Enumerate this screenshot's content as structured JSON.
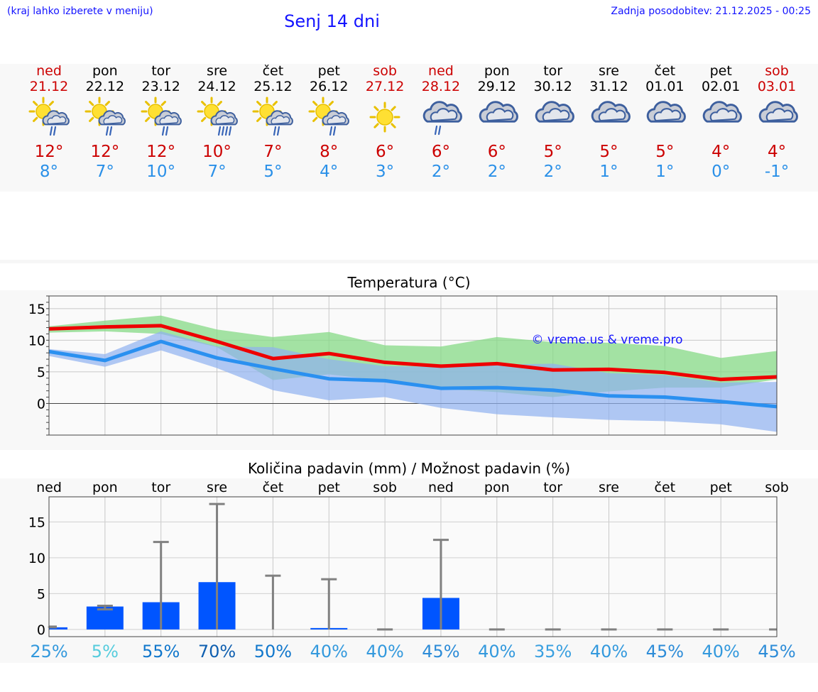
{
  "header": {
    "hint": "(kraj lahko izberete v meniju)",
    "title": "Senj 14 dni",
    "updated": "Zadnja posodobitev: 21.12.2025 - 00:25"
  },
  "days": [
    {
      "name": "ned",
      "date": "21.12",
      "weekend": true,
      "icon": "sun-cloud-rain-icon",
      "tmax": "12°",
      "tmin": "8°"
    },
    {
      "name": "pon",
      "date": "22.12",
      "weekend": false,
      "icon": "sun-cloud-rain-icon",
      "tmax": "12°",
      "tmin": "7°"
    },
    {
      "name": "tor",
      "date": "23.12",
      "weekend": false,
      "icon": "sun-cloud-rain-icon",
      "tmax": "12°",
      "tmin": "10°"
    },
    {
      "name": "sre",
      "date": "24.12",
      "weekend": false,
      "icon": "sun-cloud-heavy-rain-icon",
      "tmax": "10°",
      "tmin": "7°"
    },
    {
      "name": "čet",
      "date": "25.12",
      "weekend": false,
      "icon": "sun-cloud-rain-icon",
      "tmax": "7°",
      "tmin": "5°"
    },
    {
      "name": "pet",
      "date": "26.12",
      "weekend": false,
      "icon": "sun-cloud-rain-icon",
      "tmax": "8°",
      "tmin": "4°"
    },
    {
      "name": "sob",
      "date": "27.12",
      "weekend": true,
      "icon": "sun-icon",
      "tmax": "6°",
      "tmin": "3°"
    },
    {
      "name": "ned",
      "date": "28.12",
      "weekend": true,
      "icon": "cloud-rain-icon",
      "tmax": "6°",
      "tmin": "2°"
    },
    {
      "name": "pon",
      "date": "29.12",
      "weekend": false,
      "icon": "cloud-icon",
      "tmax": "6°",
      "tmin": "2°"
    },
    {
      "name": "tor",
      "date": "30.12",
      "weekend": false,
      "icon": "cloud-icon",
      "tmax": "5°",
      "tmin": "2°"
    },
    {
      "name": "sre",
      "date": "31.12",
      "weekend": false,
      "icon": "cloud-icon",
      "tmax": "5°",
      "tmin": "1°"
    },
    {
      "name": "čet",
      "date": "01.01",
      "weekend": false,
      "icon": "cloud-icon",
      "tmax": "5°",
      "tmin": "1°"
    },
    {
      "name": "pet",
      "date": "02.01",
      "weekend": false,
      "icon": "cloud-icon",
      "tmax": "4°",
      "tmin": "0°"
    },
    {
      "name": "sob",
      "date": "03.01",
      "weekend": true,
      "icon": "cloud-icon",
      "tmax": "4°",
      "tmin": "-1°"
    }
  ],
  "colors": {
    "weekend_text": "#cc0000",
    "weekday_text": "#000000",
    "max_line": "#ee0000",
    "min_line": "#2a90f0",
    "max_band": "#86d986",
    "min_band": "#8fb0f0",
    "bar": "#0055ff",
    "whisker": "#808080",
    "watermark": "#1414ff"
  },
  "chart_data": [
    {
      "type": "line",
      "title": "Temperatura (°C)",
      "watermark": "© vreme.us & vreme.pro",
      "ylim": [
        -5,
        17
      ],
      "yticks": [
        0,
        5,
        10,
        15
      ],
      "x": [
        0,
        1,
        2,
        3,
        4,
        5,
        6,
        7,
        8,
        9,
        10,
        11,
        12,
        13
      ],
      "series": [
        {
          "name": "max",
          "values": [
            11.8,
            12.1,
            12.3,
            9.8,
            7.1,
            7.9,
            6.5,
            5.9,
            6.3,
            5.3,
            5.4,
            4.9,
            3.8,
            4.2
          ]
        },
        {
          "name": "min",
          "values": [
            8.2,
            6.8,
            9.8,
            7.2,
            5.5,
            3.9,
            3.6,
            2.4,
            2.5,
            2.1,
            1.2,
            1.0,
            0.3,
            -0.5
          ]
        }
      ],
      "bands": [
        {
          "name": "max-range",
          "upper": [
            12.2,
            13.1,
            13.9,
            11.7,
            10.5,
            11.3,
            9.2,
            9.0,
            10.5,
            9.7,
            9.6,
            9.1,
            7.2,
            8.3
          ],
          "lower": [
            11.2,
            11.4,
            11.0,
            8.9,
            3.7,
            4.6,
            3.6,
            2.3,
            1.8,
            1.0,
            1.9,
            2.5,
            2.5,
            3.8
          ]
        },
        {
          "name": "min-range",
          "upper": [
            8.6,
            7.8,
            11.4,
            9.0,
            8.9,
            7.0,
            5.9,
            5.8,
            6.1,
            6.3,
            4.8,
            4.5,
            3.3,
            3.4
          ],
          "lower": [
            7.5,
            5.8,
            8.4,
            5.6,
            2.1,
            0.5,
            1.0,
            -0.7,
            -1.7,
            -2.2,
            -2.6,
            -2.8,
            -3.3,
            -4.5
          ]
        }
      ]
    },
    {
      "type": "bar",
      "title": "Količina padavin (mm) / Možnost padavin (%)",
      "categories": [
        "ned",
        "pon",
        "tor",
        "sre",
        "čet",
        "pet",
        "sob",
        "ned",
        "pon",
        "tor",
        "sre",
        "čet",
        "pet",
        "sob"
      ],
      "ylim": [
        -1,
        18.5
      ],
      "yticks": [
        0,
        5,
        10,
        15
      ],
      "values": [
        0.3,
        3.2,
        3.8,
        6.6,
        0,
        0.2,
        0,
        4.4,
        0,
        0,
        0,
        0,
        0,
        0
      ],
      "whisker_low": [
        0.3,
        2.8,
        0,
        0,
        0,
        0,
        0,
        0,
        0,
        0,
        0,
        0,
        0,
        0
      ],
      "whisker_high": [
        0.4,
        3.3,
        12.2,
        17.5,
        7.5,
        7.0,
        0,
        12.5,
        0,
        0,
        0,
        0,
        0,
        0
      ],
      "probability": [
        "25%",
        "5%",
        "55%",
        "70%",
        "50%",
        "40%",
        "40%",
        "45%",
        "40%",
        "35%",
        "40%",
        "45%",
        "40%",
        "45%"
      ],
      "probability_colors": [
        "#3399dd",
        "#55ccdd",
        "#1177cc",
        "#0f5fb0",
        "#1177cc",
        "#3399dd",
        "#3399dd",
        "#2d8cd8",
        "#3399dd",
        "#3aa0e0",
        "#3399dd",
        "#2d8cd8",
        "#3399dd",
        "#2d8cd8"
      ]
    }
  ]
}
